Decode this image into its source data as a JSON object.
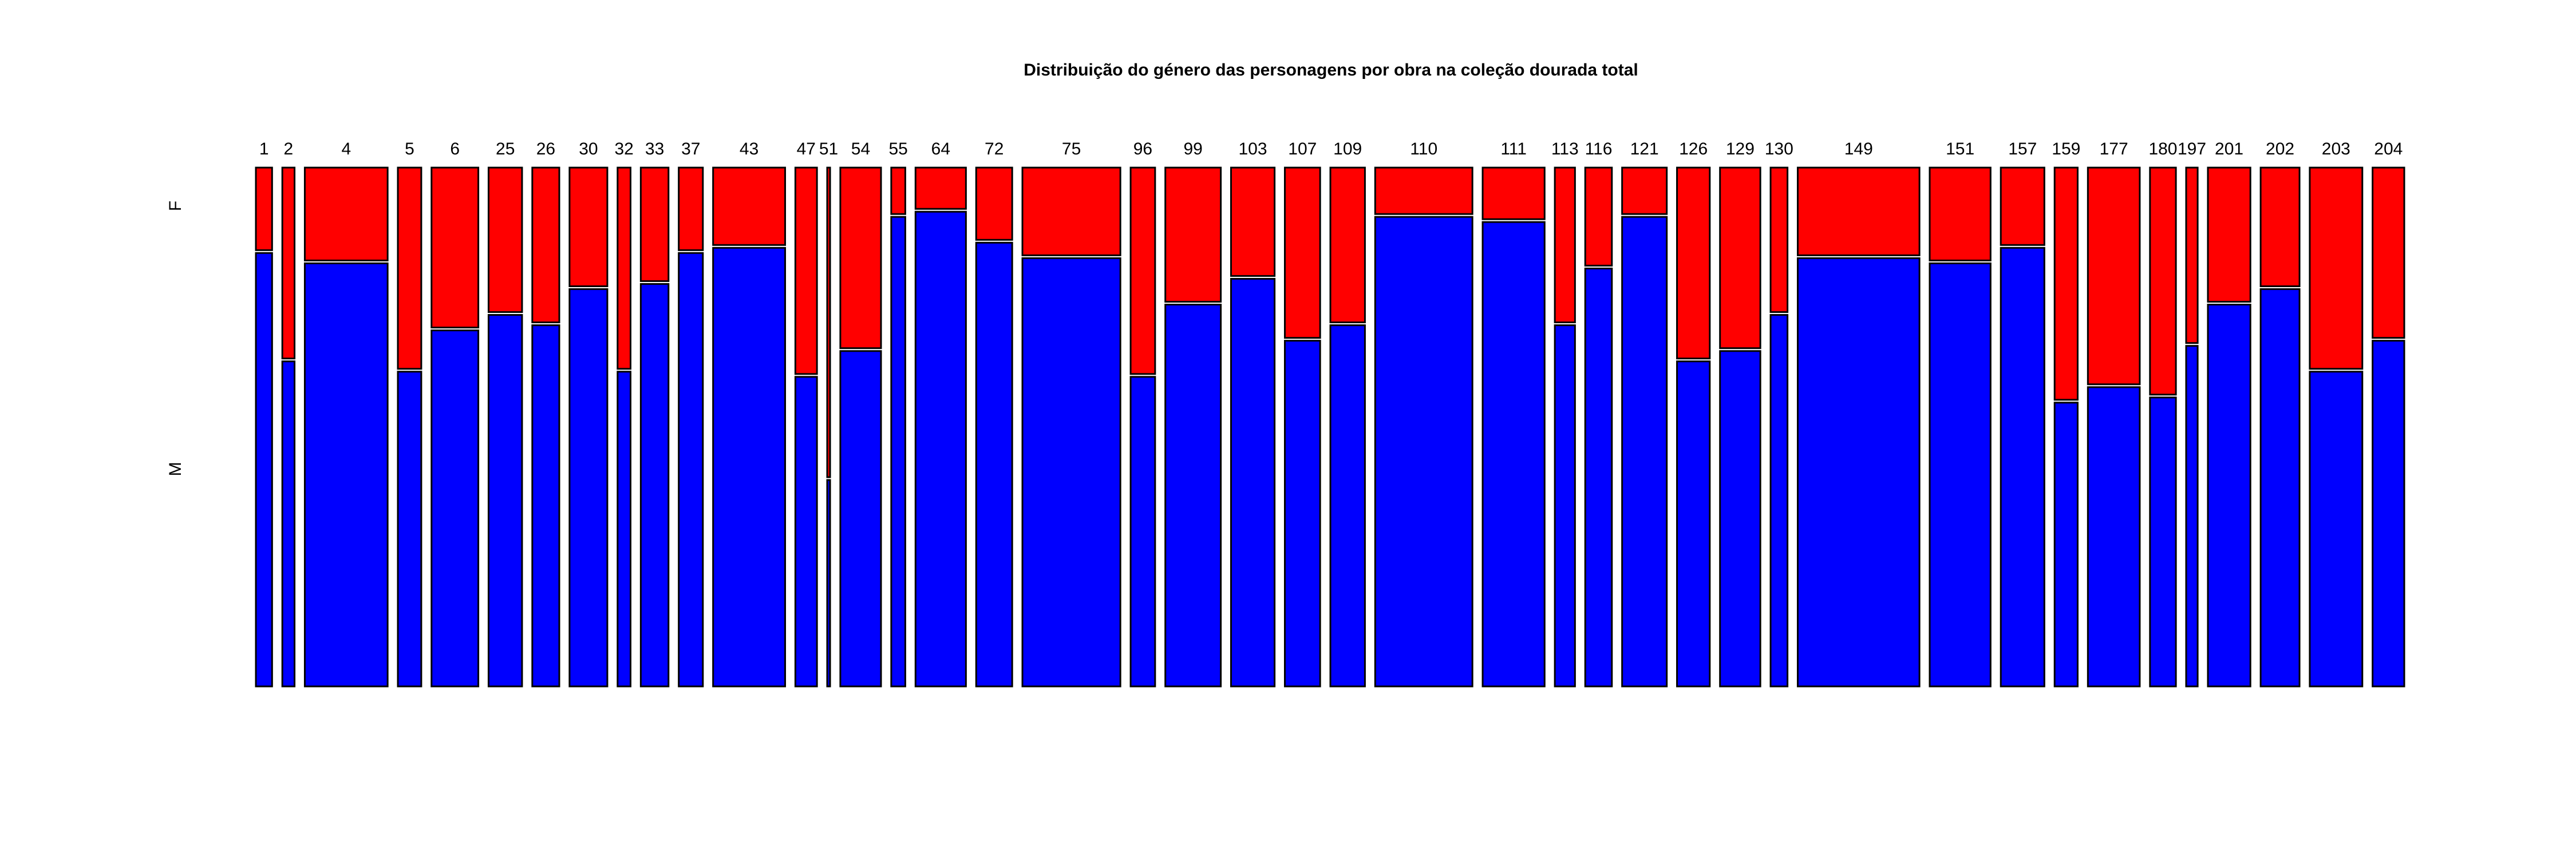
{
  "chart_data": {
    "type": "mosaic",
    "title": "Distribuição do género das personagens por obra na coleção dourada total",
    "xlabel": "",
    "ylabel": "",
    "y_levels": [
      "F",
      "M"
    ],
    "colors": {
      "F": "#ff0000",
      "M": "#0000ff"
    },
    "categories": [
      "1",
      "2",
      "4",
      "5",
      "6",
      "25",
      "26",
      "30",
      "32",
      "33",
      "37",
      "43",
      "47",
      "51",
      "54",
      "55",
      "64",
      "72",
      "75",
      "96",
      "99",
      "103",
      "107",
      "109",
      "110",
      "111",
      "113",
      "116",
      "121",
      "126",
      "129",
      "130",
      "149",
      "151",
      "157",
      "159",
      "177",
      "180",
      "197",
      "201",
      "202",
      "203",
      "204"
    ],
    "relative_sizes": [
      4.5,
      3.4,
      23,
      6.5,
      13,
      9.3,
      7.5,
      10.5,
      3.6,
      7.7,
      6.7,
      20,
      6,
      0.8,
      11.3,
      3.9,
      14,
      10,
      27.2,
      6.8,
      15.4,
      12.1,
      9.8,
      9.6,
      27,
      17.2,
      5.6,
      7.4,
      12.4,
      9.1,
      11.2,
      4.7,
      33.8,
      16.9,
      12.1,
      6.4,
      14.4,
      7.2,
      3.2,
      11.8,
      10.8,
      14.6,
      8.8
    ],
    "female_proportion": [
      0.16,
      0.37,
      0.18,
      0.39,
      0.31,
      0.28,
      0.3,
      0.23,
      0.39,
      0.22,
      0.16,
      0.15,
      0.4,
      0.6,
      0.35,
      0.09,
      0.08,
      0.14,
      0.17,
      0.4,
      0.26,
      0.21,
      0.33,
      0.3,
      0.09,
      0.1,
      0.3,
      0.19,
      0.09,
      0.37,
      0.35,
      0.28,
      0.17,
      0.18,
      0.15,
      0.45,
      0.42,
      0.44,
      0.34,
      0.26,
      0.23,
      0.39,
      0.33
    ]
  }
}
